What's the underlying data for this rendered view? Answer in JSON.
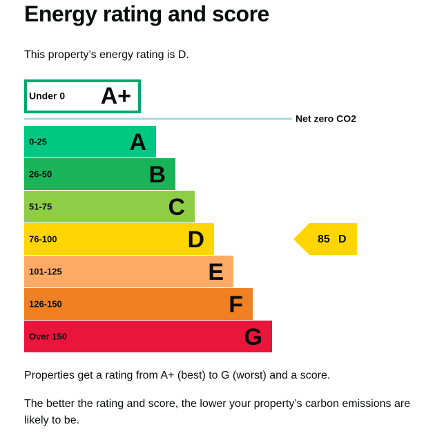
{
  "header": {
    "title": "Energy rating and score"
  },
  "intro": "This property’s energy rating is D.",
  "top_band": {
    "range": "Under 0",
    "letter": "A+",
    "color": "#00a86b"
  },
  "net_zero": {
    "label": "Net zero CO2",
    "color": "#a9d6e2"
  },
  "bands": [
    {
      "range": "0-25",
      "letter": "A",
      "color": "#00c781"
    },
    {
      "range": "26-50",
      "letter": "B",
      "color": "#19b459"
    },
    {
      "range": "51-75",
      "letter": "C",
      "color": "#8dce46"
    },
    {
      "range": "76-100",
      "letter": "D",
      "color": "#ffd500"
    },
    {
      "range": "101-125",
      "letter": "E",
      "color": "#fcaa65"
    },
    {
      "range": "126-150",
      "letter": "F",
      "color": "#ef8023"
    },
    {
      "range": "Over 150",
      "letter": "G",
      "color": "#e9153b"
    }
  ],
  "current": {
    "score": "85",
    "letter": "D",
    "band_index": 3,
    "color": "#ffd500"
  },
  "paragraphs": [
    "Properties get a rating from A+ (best) to G (worst) and a score.",
    "The better the rating and score, the lower your property’s carbon emissions are likely to be."
  ]
}
